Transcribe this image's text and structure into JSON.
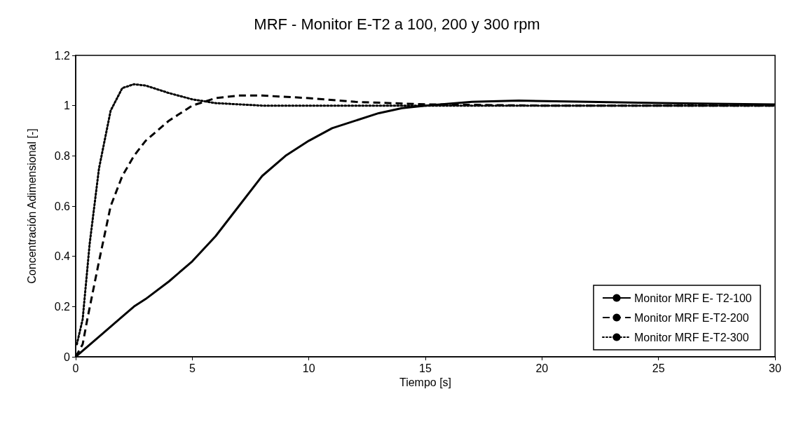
{
  "chart_data": {
    "type": "line",
    "title": "MRF - Monitor E-T2 a 100, 200 y 300 rpm",
    "xlabel": "Tiempo [s]",
    "ylabel": "Concentración Adimensional [-]",
    "xlim": [
      0,
      30
    ],
    "xticks": [
      0,
      5,
      10,
      15,
      20,
      25,
      30
    ],
    "ylim": [
      0,
      1.2
    ],
    "yticks": [
      0,
      0.2,
      0.4,
      0.6,
      0.8,
      1,
      1.2
    ],
    "grid": false,
    "legend": "bottom right",
    "marker": "none",
    "series": [
      {
        "name": "Monitor MRF E- T2-100",
        "color": "#000000",
        "line_style": "solid",
        "x": [
          0,
          1,
          2,
          2.5,
          3,
          4,
          5,
          6,
          7,
          8,
          9,
          10,
          11,
          12,
          13,
          14,
          15,
          17,
          19,
          22,
          25,
          30
        ],
        "values": [
          0,
          0.08,
          0.16,
          0.2,
          0.23,
          0.3,
          0.38,
          0.48,
          0.6,
          0.72,
          0.8,
          0.86,
          0.91,
          0.94,
          0.97,
          0.99,
          1.0,
          1.015,
          1.02,
          1.015,
          1.01,
          1.005
        ]
      },
      {
        "name": "Monitor MRF E-T2-200",
        "color": "#000000",
        "line_style": "dashed",
        "x": [
          0,
          0.3,
          0.5,
          1,
          1.5,
          2,
          2.5,
          3,
          4,
          5,
          6,
          7,
          8,
          10,
          12,
          15,
          20,
          30
        ],
        "values": [
          0,
          0.05,
          0.15,
          0.38,
          0.6,
          0.72,
          0.8,
          0.86,
          0.94,
          1.0,
          1.03,
          1.04,
          1.04,
          1.03,
          1.015,
          1.005,
          1.0,
          1.0
        ]
      },
      {
        "name": "Monitor MRF E-T2-300",
        "color": "#000000",
        "line_style": "dotted",
        "x": [
          0.05,
          0.3,
          0.6,
          1,
          1.5,
          2,
          2.5,
          3,
          4,
          5,
          6,
          8,
          30
        ],
        "values": [
          0.05,
          0.15,
          0.45,
          0.75,
          0.98,
          1.07,
          1.085,
          1.08,
          1.05,
          1.025,
          1.01,
          1.0,
          1.0
        ]
      }
    ]
  }
}
